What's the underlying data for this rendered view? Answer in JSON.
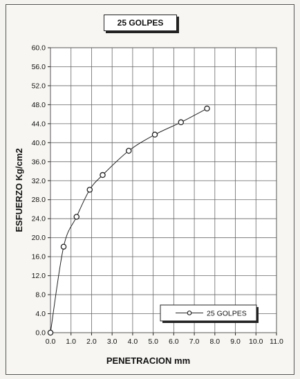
{
  "chart_data": {
    "type": "line",
    "title": "25 GOLPES",
    "xlabel": "PENETRACION mm",
    "ylabel": "ESFUERZO Kg/cm2",
    "xlim": [
      0,
      11
    ],
    "ylim": [
      0,
      60
    ],
    "x_ticks": [
      "0.0",
      "1.0",
      "2.0",
      "3.0",
      "4.0",
      "5.0",
      "6.0",
      "7.0",
      "8.0",
      "9.0",
      "10.0",
      "11.0"
    ],
    "y_ticks": [
      "0.0",
      "4.0",
      "8.0",
      "12.0",
      "16.0",
      "20.0",
      "24.0",
      "28.0",
      "32.0",
      "36.0",
      "40.0",
      "44.0",
      "48.0",
      "52.0",
      "56.0",
      "60.0"
    ],
    "grid": true,
    "legend_position": "bottom-right",
    "series": [
      {
        "name": "25 GOLPES",
        "color": "#222222",
        "marker": "open-circle",
        "x": [
          0.0,
          0.64,
          1.27,
          1.91,
          2.54,
          3.81,
          5.08,
          6.35,
          7.62
        ],
        "y": [
          0.0,
          18.1,
          24.4,
          30.1,
          33.2,
          38.3,
          41.7,
          44.3,
          47.2
        ]
      }
    ]
  }
}
